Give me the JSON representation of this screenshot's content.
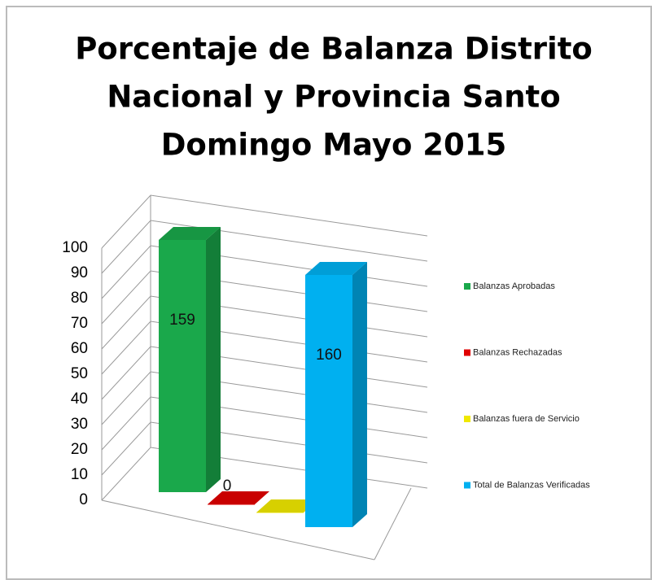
{
  "chart_data": {
    "type": "bar3d",
    "title": [
      "Porcentaje de Balanza Distrito",
      "Nacional y  Provincia Santo",
      "Domingo Mayo 2015"
    ],
    "series": [
      {
        "name": "Balanzas Aprobadas",
        "color": "#1aa84b",
        "values": [
          159
        ],
        "value_labels": [
          "159"
        ]
      },
      {
        "name": "Balanzas Rechazadas",
        "color": "#e00000",
        "values": [
          0
        ],
        "value_labels": [
          "0"
        ]
      },
      {
        "name": "Balanzas fuera de Servicio",
        "color": "#f0e800",
        "values": [
          0
        ],
        "value_labels": [
          null
        ]
      },
      {
        "name": "Total de Balanzas Verificadas",
        "color": "#00b0f0",
        "values": [
          160
        ],
        "value_labels": [
          "160"
        ]
      }
    ],
    "ylim": [
      0,
      100
    ],
    "yticks": [
      0,
      10,
      20,
      30,
      40,
      50,
      60,
      70,
      80,
      90,
      100
    ],
    "grid": true,
    "legend": "right"
  }
}
